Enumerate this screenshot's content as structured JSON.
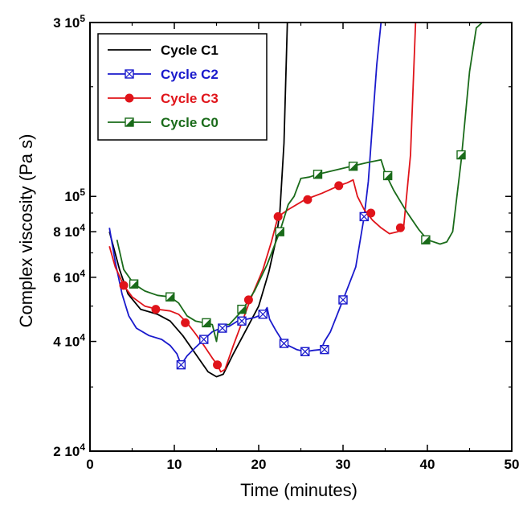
{
  "chart_data": {
    "type": "line",
    "xlabel": "Time (minutes)",
    "ylabel": "Complex viscosity (Pa s)",
    "x_scale": "linear",
    "y_scale": "log",
    "xlim": [
      0,
      50
    ],
    "ylim": [
      20000,
      300000
    ],
    "x_ticks": [
      0,
      10,
      20,
      30,
      40,
      50
    ],
    "x_tick_labels": [
      "0",
      "10",
      "20",
      "30",
      "40",
      "50"
    ],
    "y_ticks": [
      20000,
      40000,
      60000,
      80000,
      100000,
      300000
    ],
    "y_tick_labels": [
      {
        "base": "2 10",
        "exp": "4"
      },
      {
        "base": "4 10",
        "exp": "4"
      },
      {
        "base": "6 10",
        "exp": "4"
      },
      {
        "base": "8 10",
        "exp": "4"
      },
      {
        "base": "10",
        "exp": "5"
      },
      {
        "base": "3 10",
        "exp": "5"
      }
    ],
    "legend_position": "top-left",
    "grid": false,
    "series": [
      {
        "name": "Cycle C1",
        "color": "#000000",
        "marker": "none",
        "points": [
          [
            2.3,
            80000
          ],
          [
            3.5,
            63000
          ],
          [
            4.5,
            54000
          ],
          [
            6,
            49000
          ],
          [
            8,
            47500
          ],
          [
            9.5,
            45500
          ],
          [
            11,
            41500
          ],
          [
            12.5,
            37000
          ],
          [
            14,
            33000
          ],
          [
            15,
            32000
          ],
          [
            15.8,
            32500
          ],
          [
            17,
            37000
          ],
          [
            18.5,
            43000
          ],
          [
            20,
            50000
          ],
          [
            21.2,
            62000
          ],
          [
            22,
            75000
          ],
          [
            22.5,
            90000
          ],
          [
            23,
            140000
          ],
          [
            23.4,
            300000
          ]
        ],
        "markers": []
      },
      {
        "name": "Cycle C2",
        "color": "#1a1acc",
        "marker": "square-x",
        "points": [
          [
            2.3,
            82000
          ],
          [
            3,
            66000
          ],
          [
            3.8,
            54000
          ],
          [
            4.6,
            47000
          ],
          [
            5.5,
            43500
          ],
          [
            7,
            41500
          ],
          [
            8.5,
            40500
          ],
          [
            9.5,
            39000
          ],
          [
            10.3,
            37000
          ],
          [
            10.8,
            34500
          ],
          [
            11.5,
            36500
          ],
          [
            12.5,
            38500
          ],
          [
            13.5,
            40500
          ],
          [
            14.5,
            42500
          ],
          [
            15.5,
            43500
          ],
          [
            16.5,
            44000
          ],
          [
            17.5,
            45500
          ],
          [
            18.5,
            46000
          ],
          [
            19.5,
            46500
          ],
          [
            20.5,
            47500
          ],
          [
            21,
            49500
          ],
          [
            21.3,
            46000
          ],
          [
            22,
            43000
          ],
          [
            23,
            39500
          ],
          [
            24.5,
            38000
          ],
          [
            25.5,
            37500
          ],
          [
            26.5,
            37800
          ],
          [
            27.4,
            38000
          ],
          [
            27.8,
            40000
          ],
          [
            28.5,
            42500
          ],
          [
            30,
            52000
          ],
          [
            31.5,
            64000
          ],
          [
            32.5,
            88000
          ],
          [
            33,
            110000
          ],
          [
            33.5,
            160000
          ],
          [
            34,
            230000
          ],
          [
            34.5,
            300000
          ]
        ],
        "markers": [
          [
            10.8,
            34500
          ],
          [
            13.5,
            40500
          ],
          [
            15.7,
            43500
          ],
          [
            18,
            45500
          ],
          [
            20.5,
            47500
          ],
          [
            23,
            39500
          ],
          [
            25.5,
            37500
          ],
          [
            27.8,
            38000
          ],
          [
            30,
            52000
          ],
          [
            32.5,
            88000
          ]
        ]
      },
      {
        "name": "Cycle C3",
        "color": "#e0141a",
        "marker": "circle",
        "points": [
          [
            2.3,
            73000
          ],
          [
            3,
            64000
          ],
          [
            4,
            57000
          ],
          [
            5,
            53000
          ],
          [
            6.5,
            50000
          ],
          [
            8,
            49000
          ],
          [
            9.5,
            48500
          ],
          [
            10.5,
            47500
          ],
          [
            11.5,
            45000
          ],
          [
            12.5,
            42000
          ],
          [
            13.5,
            39000
          ],
          [
            14.5,
            36000
          ],
          [
            15.1,
            34500
          ],
          [
            15.5,
            33000
          ],
          [
            16,
            33500
          ],
          [
            17,
            39000
          ],
          [
            18,
            45000
          ],
          [
            19,
            52000
          ],
          [
            20.5,
            63000
          ],
          [
            21.5,
            75000
          ],
          [
            22.3,
            88000
          ],
          [
            23.5,
            92000
          ],
          [
            25.5,
            98000
          ],
          [
            27.5,
            102000
          ],
          [
            29.5,
            107000
          ],
          [
            30.5,
            109000
          ],
          [
            31.2,
            111000
          ],
          [
            31.7,
            100000
          ],
          [
            32.5,
            92000
          ],
          [
            33.5,
            86000
          ],
          [
            34.5,
            82000
          ],
          [
            35.5,
            79000
          ],
          [
            36.5,
            80000
          ],
          [
            37.2,
            83000
          ],
          [
            38,
            130000
          ],
          [
            38.6,
            300000
          ]
        ],
        "markers": [
          [
            4,
            57000
          ],
          [
            7.8,
            49000
          ],
          [
            11.3,
            45000
          ],
          [
            15.1,
            34500
          ],
          [
            18.8,
            52000
          ],
          [
            22.3,
            88000
          ],
          [
            25.8,
            98000
          ],
          [
            29.5,
            107000
          ],
          [
            33.3,
            90000
          ],
          [
            36.8,
            82000
          ]
        ]
      },
      {
        "name": "Cycle C0",
        "color": "#1a6b1a",
        "marker": "square-half",
        "points": [
          [
            3.2,
            76000
          ],
          [
            4,
            63000
          ],
          [
            5.2,
            57500
          ],
          [
            6.5,
            55000
          ],
          [
            8,
            53500
          ],
          [
            9.5,
            53000
          ],
          [
            10.5,
            51000
          ],
          [
            11.5,
            47000
          ],
          [
            12.5,
            45500
          ],
          [
            13.5,
            45000
          ],
          [
            14.5,
            44500
          ],
          [
            15,
            40000
          ],
          [
            15.3,
            44500
          ],
          [
            16.5,
            44500
          ],
          [
            18,
            48500
          ],
          [
            19.5,
            55000
          ],
          [
            21,
            65000
          ],
          [
            22.5,
            80000
          ],
          [
            23.5,
            95000
          ],
          [
            24.2,
            100000
          ],
          [
            25,
            112000
          ],
          [
            26,
            113000
          ],
          [
            27,
            115000
          ],
          [
            29,
            118000
          ],
          [
            31,
            121000
          ],
          [
            33,
            124000
          ],
          [
            34.5,
            126000
          ],
          [
            35,
            116000
          ],
          [
            36,
            104000
          ],
          [
            37.5,
            91000
          ],
          [
            39,
            81000
          ],
          [
            40,
            76000
          ],
          [
            41.5,
            74000
          ],
          [
            42.3,
            75000
          ],
          [
            43,
            80000
          ],
          [
            44,
            125000
          ],
          [
            45,
            220000
          ],
          [
            45.8,
            290000
          ],
          [
            46.5,
            300000
          ]
        ],
        "markers": [
          [
            5.2,
            57500
          ],
          [
            9.5,
            53000
          ],
          [
            13.8,
            45000
          ],
          [
            18,
            49000
          ],
          [
            22.5,
            80000
          ],
          [
            27,
            115000
          ],
          [
            31.2,
            121000
          ],
          [
            35.3,
            114000
          ],
          [
            39.8,
            76000
          ],
          [
            44,
            130000
          ]
        ]
      }
    ]
  }
}
